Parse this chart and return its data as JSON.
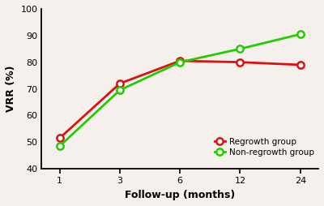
{
  "x_positions": [
    0,
    1,
    2,
    3,
    4
  ],
  "x_labels": [
    "1",
    "3",
    "6",
    "12",
    "24"
  ],
  "regrowth": [
    51.5,
    72.0,
    80.5,
    80.0,
    79.0
  ],
  "non_regrowth": [
    48.5,
    69.5,
    80.0,
    85.0,
    90.5
  ],
  "regrowth_color": "#dd1111",
  "non_regrowth_color": "#22cc00",
  "regrowth_label": "Regrowth group",
  "non_regrowth_label": "Non-regrowth group",
  "xlabel": "Follow-up (months)",
  "ylabel": "VRR (%)",
  "ylim": [
    40,
    100
  ],
  "yticks": [
    40,
    50,
    60,
    70,
    80,
    90,
    100
  ],
  "marker": "o",
  "markersize": 6,
  "linewidth": 2.0,
  "markerfacecolor": "white",
  "markeredgewidth": 1.8,
  "background_color": "#f5f0eb",
  "legend_fontsize": 7.5
}
